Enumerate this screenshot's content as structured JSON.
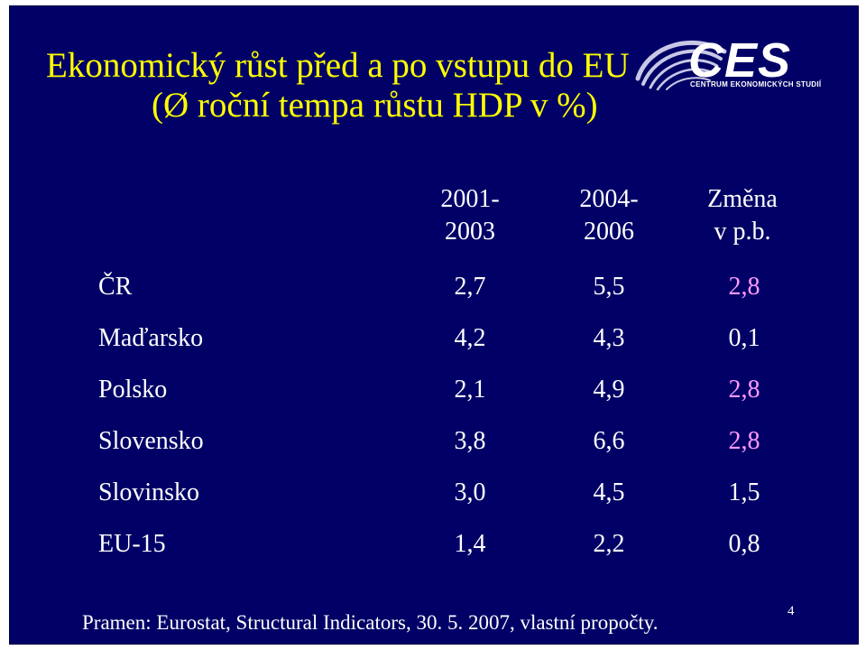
{
  "title": {
    "line1": "Ekonomický růst před a po vstupu do EU",
    "line2": "(Ø roční tempa růstu  HDP v %)"
  },
  "logo": {
    "text": "CES",
    "subtitle": "CENTRUM EKONOMICKÝCH STUDIÍ",
    "colors": {
      "swoosh": "#c8c8e6",
      "text": "#ffffff"
    }
  },
  "table": {
    "headers": [
      {
        "line1": "2001-",
        "line2": "2003"
      },
      {
        "line1": "2004-",
        "line2": "2006"
      },
      {
        "line1": "Změna",
        "line2": "v p.b."
      }
    ],
    "rows": [
      {
        "country": "ČR",
        "v1": "2,7",
        "v2": "5,5",
        "change": "2,8",
        "highlight": true
      },
      {
        "country": "Maďarsko",
        "v1": "4,2",
        "v2": "4,3",
        "change": "0,1",
        "highlight": false
      },
      {
        "country": "Polsko",
        "v1": "2,1",
        "v2": "4,9",
        "change": "2,8",
        "highlight": true
      },
      {
        "country": "Slovensko",
        "v1": "3,8",
        "v2": "6,6",
        "change": "2,8",
        "highlight": true
      },
      {
        "country": "Slovinsko",
        "v1": "3,0",
        "v2": "4,5",
        "change": "1,5",
        "highlight": false
      },
      {
        "country": "EU-15",
        "v1": "1,4",
        "v2": "2,2",
        "change": "0,8",
        "highlight": false
      }
    ]
  },
  "footer": {
    "source": "Pramen: Eurostat, Structural Indicators, 30. 5. 2007, vlastní propočty.",
    "page_number": "4"
  },
  "colors": {
    "background": "#000066",
    "title": "#ffff00",
    "text": "#ffffff",
    "highlight": "#ff99ff"
  }
}
